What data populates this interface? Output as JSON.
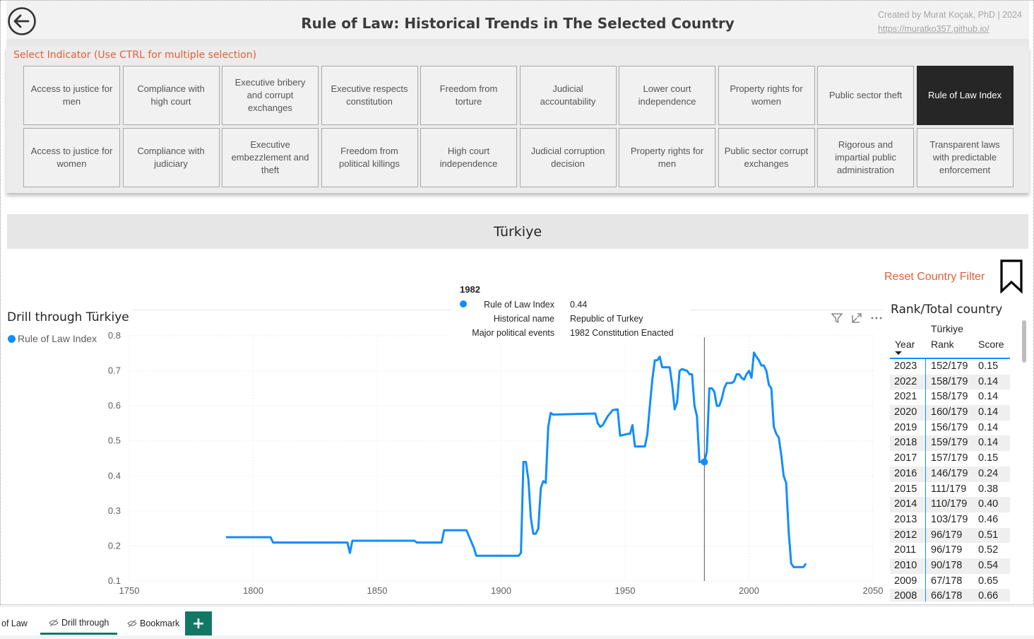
{
  "header": {
    "title": "Rule of Law: Historical Trends in The Selected Country",
    "credit_line": "Created by Murat Koçak, PhD | 2024",
    "credit_link": "https://muratko357.github.io/",
    "back_icon": "back-arrow-icon"
  },
  "slicer": {
    "label": "Select Indicator (Use CTRL for multiple selection)",
    "selected": "Rule of Law Index",
    "tiles": [
      "Access to justice for men",
      "Compliance with high court",
      "Executive bribery and corrupt exchanges",
      "Executive respects constitution",
      "Freedom from torture",
      "Judicial accountability",
      "Lower court independence",
      "Property rights for women",
      "Public sector theft",
      "Rule of Law Index",
      "Access to justice for women",
      "Compliance with judiciary",
      "Executive embezzlement and theft",
      "Freedom from political killings",
      "High court independence",
      "Judicial corruption decision",
      "Property rights for men",
      "Public sector corrupt exchanges",
      "Rigorous and impartial public administration",
      "Transparent laws with predictable enforcement"
    ]
  },
  "country": {
    "name": "Türkiye"
  },
  "actions": {
    "reset_label": "Reset Country  Filter",
    "bookmark_icon": "bookmark-icon"
  },
  "chart": {
    "title": "Drill through Türkiye",
    "legend_label": "Rule of Law Index",
    "icons": [
      "filter-icon",
      "focus-mode-icon",
      "more-options-icon"
    ],
    "tooltip": {
      "year": "1982",
      "rows": [
        {
          "key": "Rule of Law Index",
          "value": "0.44"
        },
        {
          "key": "Historical name",
          "value": "Republic of Turkey"
        },
        {
          "key": "Major political events",
          "value": "1982 Constitution Enacted"
        }
      ]
    }
  },
  "chart_data": {
    "type": "line",
    "series": [
      {
        "name": "Rule of Law Index",
        "color": "#118dff",
        "points": [
          [
            1789,
            0.225
          ],
          [
            1807,
            0.225
          ],
          [
            1808,
            0.21
          ],
          [
            1838,
            0.21
          ],
          [
            1839,
            0.18
          ],
          [
            1840,
            0.215
          ],
          [
            1865,
            0.215
          ],
          [
            1866,
            0.21
          ],
          [
            1876,
            0.21
          ],
          [
            1877,
            0.245
          ],
          [
            1882,
            0.245
          ],
          [
            1886,
            0.245
          ],
          [
            1889,
            0.195
          ],
          [
            1890,
            0.172
          ],
          [
            1906,
            0.172
          ],
          [
            1907,
            0.172
          ],
          [
            1908,
            0.18
          ],
          [
            1909,
            0.44
          ],
          [
            1910,
            0.44
          ],
          [
            1911,
            0.39
          ],
          [
            1912,
            0.28
          ],
          [
            1913,
            0.235
          ],
          [
            1914,
            0.235
          ],
          [
            1915,
            0.25
          ],
          [
            1916,
            0.365
          ],
          [
            1917,
            0.385
          ],
          [
            1918,
            0.38
          ],
          [
            1919,
            0.54
          ],
          [
            1920,
            0.58
          ],
          [
            1921,
            0.575
          ],
          [
            1938,
            0.578
          ],
          [
            1939,
            0.55
          ],
          [
            1940,
            0.54
          ],
          [
            1941,
            0.545
          ],
          [
            1943,
            0.57
          ],
          [
            1945,
            0.588
          ],
          [
            1947,
            0.59
          ],
          [
            1948,
            0.515
          ],
          [
            1950,
            0.518
          ],
          [
            1951,
            0.52
          ],
          [
            1952,
            0.52
          ],
          [
            1953,
            0.545
          ],
          [
            1954,
            0.484
          ],
          [
            1957,
            0.484
          ],
          [
            1958,
            0.484
          ],
          [
            1959,
            0.52
          ],
          [
            1960,
            0.6
          ],
          [
            1961,
            0.675
          ],
          [
            1962,
            0.73
          ],
          [
            1963,
            0.73
          ],
          [
            1964,
            0.74
          ],
          [
            1965,
            0.71
          ],
          [
            1967,
            0.71
          ],
          [
            1968,
            0.71
          ],
          [
            1969,
            0.66
          ],
          [
            1970,
            0.59
          ],
          [
            1971,
            0.61
          ],
          [
            1972,
            0.7
          ],
          [
            1973,
            0.705
          ],
          [
            1975,
            0.7
          ],
          [
            1976,
            0.69
          ],
          [
            1977,
            0.69
          ],
          [
            1978,
            0.6
          ],
          [
            1979,
            0.57
          ],
          [
            1980,
            0.44
          ],
          [
            1981,
            0.44
          ],
          [
            1982,
            0.44
          ],
          [
            1983,
            0.47
          ],
          [
            1984,
            0.65
          ],
          [
            1985,
            0.65
          ],
          [
            1986,
            0.64
          ],
          [
            1987,
            0.6
          ],
          [
            1988,
            0.6
          ],
          [
            1989,
            0.62
          ],
          [
            1990,
            0.65
          ],
          [
            1991,
            0.665
          ],
          [
            1992,
            0.665
          ],
          [
            1993,
            0.665
          ],
          [
            1994,
            0.67
          ],
          [
            1995,
            0.69
          ],
          [
            1996,
            0.69
          ],
          [
            1997,
            0.68
          ],
          [
            1998,
            0.675
          ],
          [
            1999,
            0.69
          ],
          [
            2000,
            0.7
          ],
          [
            2001,
            0.68
          ],
          [
            2002,
            0.752
          ],
          [
            2003,
            0.74
          ],
          [
            2004,
            0.73
          ],
          [
            2005,
            0.715
          ],
          [
            2006,
            0.715
          ],
          [
            2007,
            0.7
          ],
          [
            2008,
            0.66
          ],
          [
            2009,
            0.65
          ],
          [
            2010,
            0.54
          ],
          [
            2011,
            0.52
          ],
          [
            2012,
            0.51
          ],
          [
            2013,
            0.46
          ],
          [
            2014,
            0.4
          ],
          [
            2015,
            0.38
          ],
          [
            2016,
            0.24
          ],
          [
            2017,
            0.15
          ],
          [
            2018,
            0.14
          ],
          [
            2019,
            0.14
          ],
          [
            2020,
            0.14
          ],
          [
            2021,
            0.14
          ],
          [
            2022,
            0.14
          ],
          [
            2023,
            0.15
          ]
        ]
      }
    ],
    "xlim": [
      1750,
      2050
    ],
    "ylim": [
      0.1,
      0.8
    ],
    "xticks": [
      1750,
      1800,
      1850,
      1900,
      1950,
      2000,
      2050
    ],
    "yticks": [
      0.1,
      0.2,
      0.3,
      0.4,
      0.5,
      0.6,
      0.7,
      0.8
    ],
    "highlight": {
      "x": 1982,
      "y": 0.44
    },
    "grid": true,
    "legend": "top-left"
  },
  "rank_table": {
    "title": "Rank/Total country",
    "country_header": "Türkiye",
    "columns": [
      "Year",
      "Rank",
      "Score"
    ],
    "rows": [
      [
        "2023",
        "152/179",
        "0.15"
      ],
      [
        "2022",
        "158/179",
        "0.14"
      ],
      [
        "2021",
        "158/179",
        "0.14"
      ],
      [
        "2020",
        "160/179",
        "0.14"
      ],
      [
        "2019",
        "156/179",
        "0.14"
      ],
      [
        "2018",
        "159/179",
        "0.14"
      ],
      [
        "2017",
        "157/179",
        "0.15"
      ],
      [
        "2016",
        "146/179",
        "0.24"
      ],
      [
        "2015",
        "111/179",
        "0.38"
      ],
      [
        "2014",
        "110/179",
        "0.40"
      ],
      [
        "2013",
        "103/179",
        "0.46"
      ],
      [
        "2012",
        "96/179",
        "0.51"
      ],
      [
        "2011",
        "96/179",
        "0.52"
      ],
      [
        "2010",
        "90/178",
        "0.54"
      ],
      [
        "2009",
        "67/178",
        "0.65"
      ],
      [
        "2008",
        "66/178",
        "0.66"
      ]
    ]
  },
  "tabs": [
    {
      "label": "of Law",
      "active": false,
      "hidden": false
    },
    {
      "label": "Drill through",
      "active": true,
      "hidden": true
    },
    {
      "label": "Bookmark",
      "active": false,
      "hidden": true
    }
  ],
  "add_tab_label": "+"
}
